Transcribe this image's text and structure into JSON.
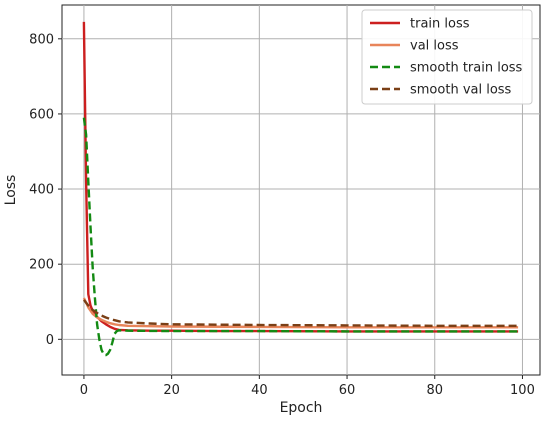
{
  "chart_data": {
    "type": "line",
    "title": "",
    "xlabel": "Epoch",
    "ylabel": "Loss",
    "xlim": [
      -5,
      104
    ],
    "ylim": [
      -95,
      890
    ],
    "xticks": [
      0,
      20,
      40,
      60,
      80,
      100
    ],
    "yticks": [
      0,
      200,
      400,
      600,
      800
    ],
    "grid": true,
    "legend_position": "top-right",
    "series": [
      {
        "name": "train loss",
        "color": "#cc1f1f",
        "style": "solid",
        "points": [
          [
            0,
            845
          ],
          [
            0.5,
            420
          ],
          [
            1,
            120
          ],
          [
            1.5,
            90
          ],
          [
            2,
            75
          ],
          [
            3,
            60
          ],
          [
            4,
            48
          ],
          [
            5,
            40
          ],
          [
            6,
            33
          ],
          [
            7,
            28
          ],
          [
            8,
            25
          ],
          [
            10,
            24
          ],
          [
            15,
            23
          ],
          [
            20,
            23
          ],
          [
            30,
            22
          ],
          [
            40,
            22
          ],
          [
            60,
            21
          ],
          [
            80,
            21
          ],
          [
            99,
            21
          ]
        ]
      },
      {
        "name": "val loss",
        "color": "#e8855a",
        "style": "solid",
        "points": [
          [
            0,
            110
          ],
          [
            1,
            85
          ],
          [
            2,
            68
          ],
          [
            3,
            58
          ],
          [
            4,
            52
          ],
          [
            5,
            47
          ],
          [
            6,
            43
          ],
          [
            7,
            40
          ],
          [
            8,
            38
          ],
          [
            10,
            36
          ],
          [
            15,
            35
          ],
          [
            20,
            34
          ],
          [
            40,
            33
          ],
          [
            60,
            32
          ],
          [
            80,
            32
          ],
          [
            99,
            32
          ]
        ]
      },
      {
        "name": "smooth train loss",
        "color": "#138a13",
        "style": "dashed",
        "points": [
          [
            0,
            590
          ],
          [
            0.5,
            545
          ],
          [
            1,
            420
          ],
          [
            1.5,
            300
          ],
          [
            2,
            190
          ],
          [
            2.5,
            110
          ],
          [
            3,
            40
          ],
          [
            3.5,
            0
          ],
          [
            4,
            -28
          ],
          [
            4.5,
            -40
          ],
          [
            5,
            -42
          ],
          [
            5.5,
            -38
          ],
          [
            6,
            -28
          ],
          [
            6.5,
            -8
          ],
          [
            7,
            15
          ],
          [
            7.5,
            22
          ],
          [
            8,
            24
          ],
          [
            10,
            23
          ],
          [
            20,
            22
          ],
          [
            40,
            22
          ],
          [
            60,
            21
          ],
          [
            80,
            21
          ],
          [
            99,
            21
          ]
        ]
      },
      {
        "name": "smooth val loss",
        "color": "#7a3f16",
        "style": "dashed",
        "points": [
          [
            0,
            105
          ],
          [
            1,
            90
          ],
          [
            2,
            78
          ],
          [
            3,
            70
          ],
          [
            4,
            63
          ],
          [
            5,
            58
          ],
          [
            6,
            54
          ],
          [
            7,
            51
          ],
          [
            8,
            48
          ],
          [
            10,
            45
          ],
          [
            15,
            42
          ],
          [
            20,
            40
          ],
          [
            40,
            38
          ],
          [
            60,
            37
          ],
          [
            80,
            36
          ],
          [
            99,
            36
          ]
        ]
      }
    ]
  }
}
